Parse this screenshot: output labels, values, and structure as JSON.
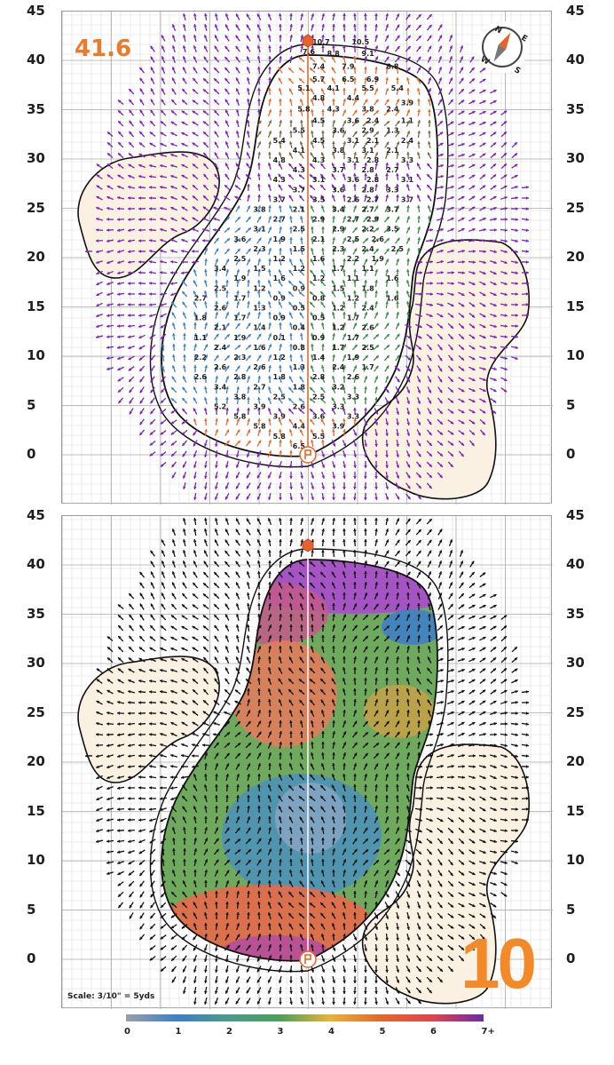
{
  "green_number": "41.6",
  "hole_number": "10",
  "scale_note": "Scale: 3/10\" = 5yds",
  "y_axis_ticks": [
    "45",
    "40",
    "35",
    "30",
    "25",
    "20",
    "15",
    "10",
    "5",
    "0"
  ],
  "compass": {
    "n": "N",
    "e": "E",
    "s": "S",
    "w": "W"
  },
  "legend": {
    "ticks": [
      "0",
      "1",
      "2",
      "3",
      "4",
      "5",
      "6",
      "7+"
    ],
    "colors": [
      "#9aa0a8",
      "#3f7fc6",
      "#4b9a8a",
      "#4aa05a",
      "#7a9a3a",
      "#e2692a",
      "#e0444c",
      "#b03aa8",
      "#7a2aa8"
    ]
  },
  "slope_labels": [
    {
      "x": 0,
      "y": 42,
      "t": "10.7"
    },
    {
      "x": 4,
      "y": 42,
      "t": "10.5"
    },
    {
      "x": -1,
      "y": 41,
      "t": "7.6"
    },
    {
      "x": 1.5,
      "y": 40.8,
      "t": "8.8"
    },
    {
      "x": 5,
      "y": 40.8,
      "t": "9.1"
    },
    {
      "x": 0,
      "y": 39.5,
      "t": "7.4"
    },
    {
      "x": 3,
      "y": 39.5,
      "t": "7.9"
    },
    {
      "x": 7.5,
      "y": 39.5,
      "t": "8.8"
    },
    {
      "x": 0,
      "y": 38.2,
      "t": "5.7"
    },
    {
      "x": 3,
      "y": 38.2,
      "t": "6.5"
    },
    {
      "x": 5.5,
      "y": 38.2,
      "t": "6.9"
    },
    {
      "x": -1.5,
      "y": 37.3,
      "t": "5.1"
    },
    {
      "x": 1.5,
      "y": 37.3,
      "t": "4.1"
    },
    {
      "x": 5,
      "y": 37.3,
      "t": "5.5"
    },
    {
      "x": 8,
      "y": 37.3,
      "t": "5.4"
    },
    {
      "x": 0,
      "y": 36.3,
      "t": "4.8"
    },
    {
      "x": 3.5,
      "y": 36.3,
      "t": "4.4"
    },
    {
      "x": 9,
      "y": 35.8,
      "t": "3.9"
    },
    {
      "x": -1.5,
      "y": 35.2,
      "t": "5.8"
    },
    {
      "x": 1.5,
      "y": 35.2,
      "t": "4.3"
    },
    {
      "x": 5,
      "y": 35.2,
      "t": "3.8"
    },
    {
      "x": 7.5,
      "y": 35.2,
      "t": "2.4"
    },
    {
      "x": 0,
      "y": 34,
      "t": "4.5"
    },
    {
      "x": 3.5,
      "y": 34,
      "t": "3.6"
    },
    {
      "x": 5.5,
      "y": 34,
      "t": "2.4"
    },
    {
      "x": 9,
      "y": 34,
      "t": "1.1"
    },
    {
      "x": -2,
      "y": 33,
      "t": "5.5"
    },
    {
      "x": 2,
      "y": 33,
      "t": "3.6"
    },
    {
      "x": 5,
      "y": 33,
      "t": "2.9"
    },
    {
      "x": 7.5,
      "y": 33,
      "t": "1.3"
    },
    {
      "x": -4,
      "y": 32,
      "t": "5.4"
    },
    {
      "x": 0,
      "y": 32,
      "t": "4.5"
    },
    {
      "x": 3.5,
      "y": 32,
      "t": "3.1"
    },
    {
      "x": 5.5,
      "y": 32,
      "t": "2.1"
    },
    {
      "x": 9,
      "y": 32,
      "t": "2.4"
    },
    {
      "x": -2,
      "y": 31,
      "t": "4.1"
    },
    {
      "x": 2,
      "y": 31,
      "t": "3.8"
    },
    {
      "x": 5,
      "y": 31,
      "t": "3.1"
    },
    {
      "x": 7.5,
      "y": 31,
      "t": "2.1"
    },
    {
      "x": -4,
      "y": 30,
      "t": "4.8"
    },
    {
      "x": 0,
      "y": 30,
      "t": "4.3"
    },
    {
      "x": 3.5,
      "y": 30,
      "t": "3.1"
    },
    {
      "x": 5.5,
      "y": 30,
      "t": "2.8"
    },
    {
      "x": 9,
      "y": 30,
      "t": "3.3"
    },
    {
      "x": -2,
      "y": 29,
      "t": "4.3"
    },
    {
      "x": 2,
      "y": 29,
      "t": "3.7"
    },
    {
      "x": 5,
      "y": 29,
      "t": "2.8"
    },
    {
      "x": 7.5,
      "y": 29,
      "t": "2.7"
    },
    {
      "x": -4,
      "y": 28,
      "t": "4.3"
    },
    {
      "x": 0,
      "y": 28,
      "t": "3.1"
    },
    {
      "x": 3.5,
      "y": 28,
      "t": "3.6"
    },
    {
      "x": 5.5,
      "y": 28,
      "t": "2.8"
    },
    {
      "x": 9,
      "y": 28,
      "t": "3.1"
    },
    {
      "x": -2,
      "y": 27,
      "t": "3.7"
    },
    {
      "x": 2,
      "y": 27,
      "t": "3.6"
    },
    {
      "x": 5,
      "y": 27,
      "t": "2.8"
    },
    {
      "x": 7.5,
      "y": 27,
      "t": "3.3"
    },
    {
      "x": -4,
      "y": 26,
      "t": "3.7"
    },
    {
      "x": 0,
      "y": 26,
      "t": "3.5"
    },
    {
      "x": 3.5,
      "y": 26,
      "t": "2.6"
    },
    {
      "x": 5.5,
      "y": 26,
      "t": "2.7"
    },
    {
      "x": 9,
      "y": 26,
      "t": "3.7"
    },
    {
      "x": -6,
      "y": 25,
      "t": "3.8"
    },
    {
      "x": -2,
      "y": 25,
      "t": "2.1"
    },
    {
      "x": 2,
      "y": 25,
      "t": "3.4"
    },
    {
      "x": 5,
      "y": 25,
      "t": "2.7"
    },
    {
      "x": 7.5,
      "y": 25,
      "t": "3.7"
    },
    {
      "x": -4,
      "y": 24,
      "t": "2.7"
    },
    {
      "x": 0,
      "y": 24,
      "t": "2.9"
    },
    {
      "x": 3.5,
      "y": 24,
      "t": "2.7"
    },
    {
      "x": 5.5,
      "y": 24,
      "t": "2.9"
    },
    {
      "x": -6,
      "y": 23,
      "t": "3.1"
    },
    {
      "x": -2,
      "y": 23,
      "t": "2.5"
    },
    {
      "x": 2,
      "y": 23,
      "t": "2.9"
    },
    {
      "x": 5,
      "y": 23,
      "t": "2.2"
    },
    {
      "x": 7.5,
      "y": 23,
      "t": "3.5"
    },
    {
      "x": -8,
      "y": 22,
      "t": "3.6"
    },
    {
      "x": -4,
      "y": 22,
      "t": "1.9"
    },
    {
      "x": 0,
      "y": 22,
      "t": "2.1"
    },
    {
      "x": 3.5,
      "y": 22,
      "t": "2.5"
    },
    {
      "x": 6,
      "y": 22,
      "t": "2.6"
    },
    {
      "x": -6,
      "y": 21,
      "t": "2.3"
    },
    {
      "x": -2,
      "y": 21,
      "t": "1.5"
    },
    {
      "x": 2,
      "y": 21,
      "t": "2.3"
    },
    {
      "x": 5,
      "y": 21,
      "t": "2.4"
    },
    {
      "x": 8,
      "y": 21,
      "t": "2.5"
    },
    {
      "x": -8,
      "y": 20,
      "t": "2.5"
    },
    {
      "x": -4,
      "y": 20,
      "t": "1.2"
    },
    {
      "x": 0,
      "y": 20,
      "t": "1.6"
    },
    {
      "x": 3.5,
      "y": 20,
      "t": "2.2"
    },
    {
      "x": 6,
      "y": 20,
      "t": "1.9"
    },
    {
      "x": -10,
      "y": 19,
      "t": "3.4"
    },
    {
      "x": -6,
      "y": 19,
      "t": "1.5"
    },
    {
      "x": -2,
      "y": 19,
      "t": "1.2"
    },
    {
      "x": 2,
      "y": 19,
      "t": "1.7"
    },
    {
      "x": 5,
      "y": 19,
      "t": "1.1"
    },
    {
      "x": -8,
      "y": 18,
      "t": "1.9"
    },
    {
      "x": -4,
      "y": 18,
      "t": "1.6"
    },
    {
      "x": 0,
      "y": 18,
      "t": "1.2"
    },
    {
      "x": 3.5,
      "y": 18,
      "t": "1.1"
    },
    {
      "x": 7.5,
      "y": 18,
      "t": "1.6"
    },
    {
      "x": -10,
      "y": 17,
      "t": "2.5"
    },
    {
      "x": -6,
      "y": 17,
      "t": "1.2"
    },
    {
      "x": -2,
      "y": 17,
      "t": "0.9"
    },
    {
      "x": 2,
      "y": 17,
      "t": "1.5"
    },
    {
      "x": 5,
      "y": 17,
      "t": "1.8"
    },
    {
      "x": -12,
      "y": 16,
      "t": "2.7"
    },
    {
      "x": -8,
      "y": 16,
      "t": "1.7"
    },
    {
      "x": -4,
      "y": 16,
      "t": "0.9"
    },
    {
      "x": 0,
      "y": 16,
      "t": "0.8"
    },
    {
      "x": 3.5,
      "y": 16,
      "t": "1.2"
    },
    {
      "x": 7.5,
      "y": 16,
      "t": "1.6"
    },
    {
      "x": -10,
      "y": 15,
      "t": "2.6"
    },
    {
      "x": -6,
      "y": 15,
      "t": "1.3"
    },
    {
      "x": -2,
      "y": 15,
      "t": "0.5"
    },
    {
      "x": 2,
      "y": 15,
      "t": "1.2"
    },
    {
      "x": 5,
      "y": 15,
      "t": "2.4"
    },
    {
      "x": -12,
      "y": 14,
      "t": "1.8"
    },
    {
      "x": -8,
      "y": 14,
      "t": "1.7"
    },
    {
      "x": -4,
      "y": 14,
      "t": "0.9"
    },
    {
      "x": 0,
      "y": 14,
      "t": "0.5"
    },
    {
      "x": 3.5,
      "y": 14,
      "t": "1.7"
    },
    {
      "x": -10,
      "y": 13,
      "t": "2.1"
    },
    {
      "x": -6,
      "y": 13,
      "t": "1.4"
    },
    {
      "x": -2,
      "y": 13,
      "t": "0.4"
    },
    {
      "x": 2,
      "y": 13,
      "t": "1.2"
    },
    {
      "x": 5,
      "y": 13,
      "t": "2.6"
    },
    {
      "x": -12,
      "y": 12,
      "t": "1.1"
    },
    {
      "x": -8,
      "y": 12,
      "t": "1.9"
    },
    {
      "x": -4,
      "y": 12,
      "t": "0.1"
    },
    {
      "x": 0,
      "y": 12,
      "t": "0.9"
    },
    {
      "x": 3.5,
      "y": 12,
      "t": "1.7"
    },
    {
      "x": -10,
      "y": 11,
      "t": "2.4"
    },
    {
      "x": -6,
      "y": 11,
      "t": "1.6"
    },
    {
      "x": -2,
      "y": 11,
      "t": "0.8"
    },
    {
      "x": 2,
      "y": 11,
      "t": "1.7"
    },
    {
      "x": 5,
      "y": 11,
      "t": "2.5"
    },
    {
      "x": -12,
      "y": 10,
      "t": "2.2"
    },
    {
      "x": -8,
      "y": 10,
      "t": "2.3"
    },
    {
      "x": -4,
      "y": 10,
      "t": "1.2"
    },
    {
      "x": 0,
      "y": 10,
      "t": "1.4"
    },
    {
      "x": 3.5,
      "y": 10,
      "t": "1.9"
    },
    {
      "x": -10,
      "y": 9,
      "t": "2.6"
    },
    {
      "x": -6,
      "y": 9,
      "t": "2.6"
    },
    {
      "x": -2,
      "y": 9,
      "t": "1.3"
    },
    {
      "x": 2,
      "y": 9,
      "t": "2.4"
    },
    {
      "x": 5,
      "y": 9,
      "t": "1.7"
    },
    {
      "x": -12,
      "y": 8,
      "t": "2.6"
    },
    {
      "x": -8,
      "y": 8,
      "t": "2.8"
    },
    {
      "x": -4,
      "y": 8,
      "t": "1.8"
    },
    {
      "x": 0,
      "y": 8,
      "t": "2.8"
    },
    {
      "x": 3.5,
      "y": 8,
      "t": "2.6"
    },
    {
      "x": -10,
      "y": 7,
      "t": "3.4"
    },
    {
      "x": -6,
      "y": 7,
      "t": "2.7"
    },
    {
      "x": -2,
      "y": 7,
      "t": "1.8"
    },
    {
      "x": 2,
      "y": 7,
      "t": "3.2"
    },
    {
      "x": -8,
      "y": 6,
      "t": "3.8"
    },
    {
      "x": -4,
      "y": 6,
      "t": "2.5"
    },
    {
      "x": 0,
      "y": 6,
      "t": "2.5"
    },
    {
      "x": 3.5,
      "y": 6,
      "t": "3.3"
    },
    {
      "x": -10,
      "y": 5,
      "t": "5.2"
    },
    {
      "x": -6,
      "y": 5,
      "t": "3.9"
    },
    {
      "x": -2,
      "y": 5,
      "t": "2.6"
    },
    {
      "x": 2,
      "y": 5,
      "t": "3.3"
    },
    {
      "x": -8,
      "y": 4,
      "t": "5.8"
    },
    {
      "x": -4,
      "y": 4,
      "t": "3.9"
    },
    {
      "x": 0,
      "y": 4,
      "t": "3.6"
    },
    {
      "x": 3.5,
      "y": 4,
      "t": "3.3"
    },
    {
      "x": -6,
      "y": 3,
      "t": "5.8"
    },
    {
      "x": -2,
      "y": 3,
      "t": "4.4"
    },
    {
      "x": 2,
      "y": 3,
      "t": "3.9"
    },
    {
      "x": -4,
      "y": 2,
      "t": "5.8"
    },
    {
      "x": 0,
      "y": 2,
      "t": "5.5"
    },
    {
      "x": -2,
      "y": 1,
      "t": "6.5"
    }
  ]
}
